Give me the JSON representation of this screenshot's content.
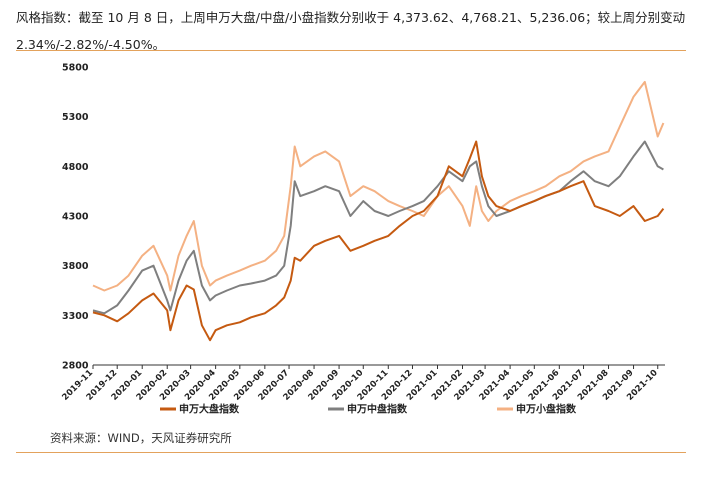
{
  "header": {
    "line1": "风格指数：截至 10 月 8 日，上周申万大盘/中盘/小盘指数分别收于 4,373.62、4,768.21、5,236.06；较上周分别变动",
    "line2": "2.34%/-2.82%/-4.50%。"
  },
  "source": "资料来源：WIND，天风证券研究所",
  "chart_data": {
    "type": "line",
    "ylim": [
      2800,
      5800
    ],
    "yticks": [
      2800,
      3300,
      3800,
      4300,
      4800,
      5300,
      5800
    ],
    "xlim": [
      "2019-11",
      "2021-10"
    ],
    "xticks": [
      "2019-11",
      "2019-12",
      "2020-01",
      "2020-02",
      "2020-03",
      "2020-04",
      "2020-05",
      "2020-06",
      "2020-07",
      "2020-08",
      "2020-09",
      "2020-10",
      "2020-11",
      "2020-12",
      "2021-01",
      "2021-02",
      "2021-03",
      "2021-04",
      "2021-05",
      "2021-06",
      "2021-07",
      "2021-08",
      "2021-09",
      "2021-10"
    ],
    "legend_position": "bottom",
    "series": [
      {
        "name": "申万大盘指数",
        "color": "#c55a11",
        "points": [
          [
            "2019-11-01",
            3330
          ],
          [
            "2019-11-15",
            3300
          ],
          [
            "2019-12-01",
            3240
          ],
          [
            "2019-12-15",
            3320
          ],
          [
            "2020-01-01",
            3450
          ],
          [
            "2020-01-15",
            3520
          ],
          [
            "2020-02-01",
            3350
          ],
          [
            "2020-02-05",
            3150
          ],
          [
            "2020-02-15",
            3450
          ],
          [
            "2020-02-25",
            3600
          ],
          [
            "2020-03-05",
            3560
          ],
          [
            "2020-03-15",
            3200
          ],
          [
            "2020-03-25",
            3050
          ],
          [
            "2020-04-01",
            3150
          ],
          [
            "2020-04-15",
            3200
          ],
          [
            "2020-05-01",
            3230
          ],
          [
            "2020-05-15",
            3280
          ],
          [
            "2020-06-01",
            3320
          ],
          [
            "2020-06-15",
            3400
          ],
          [
            "2020-06-25",
            3480
          ],
          [
            "2020-07-03",
            3650
          ],
          [
            "2020-07-08",
            3880
          ],
          [
            "2020-07-15",
            3850
          ],
          [
            "2020-08-01",
            4000
          ],
          [
            "2020-08-15",
            4050
          ],
          [
            "2020-09-01",
            4100
          ],
          [
            "2020-09-15",
            3950
          ],
          [
            "2020-10-01",
            4000
          ],
          [
            "2020-10-15",
            4050
          ],
          [
            "2020-11-01",
            4100
          ],
          [
            "2020-11-15",
            4200
          ],
          [
            "2020-12-01",
            4300
          ],
          [
            "2020-12-15",
            4350
          ],
          [
            "2021-01-01",
            4500
          ],
          [
            "2021-01-15",
            4800
          ],
          [
            "2021-02-01",
            4700
          ],
          [
            "2021-02-10",
            4880
          ],
          [
            "2021-02-18",
            5050
          ],
          [
            "2021-02-25",
            4700
          ],
          [
            "2021-03-05",
            4500
          ],
          [
            "2021-03-15",
            4400
          ],
          [
            "2021-04-01",
            4350
          ],
          [
            "2021-04-15",
            4400
          ],
          [
            "2021-05-01",
            4450
          ],
          [
            "2021-05-15",
            4500
          ],
          [
            "2021-06-01",
            4550
          ],
          [
            "2021-06-15",
            4600
          ],
          [
            "2021-07-01",
            4650
          ],
          [
            "2021-07-15",
            4400
          ],
          [
            "2021-08-01",
            4350
          ],
          [
            "2021-08-15",
            4300
          ],
          [
            "2021-09-01",
            4400
          ],
          [
            "2021-09-15",
            4250
          ],
          [
            "2021-10-01",
            4300
          ],
          [
            "2021-10-08",
            4374
          ]
        ]
      },
      {
        "name": "申万中盘指数",
        "color": "#7f7f7f",
        "points": [
          [
            "2019-11-01",
            3350
          ],
          [
            "2019-11-15",
            3320
          ],
          [
            "2019-12-01",
            3400
          ],
          [
            "2019-12-15",
            3550
          ],
          [
            "2020-01-01",
            3750
          ],
          [
            "2020-01-15",
            3800
          ],
          [
            "2020-02-01",
            3450
          ],
          [
            "2020-02-05",
            3350
          ],
          [
            "2020-02-15",
            3650
          ],
          [
            "2020-02-25",
            3850
          ],
          [
            "2020-03-05",
            3950
          ],
          [
            "2020-03-15",
            3600
          ],
          [
            "2020-03-25",
            3450
          ],
          [
            "2020-04-01",
            3500
          ],
          [
            "2020-04-15",
            3550
          ],
          [
            "2020-05-01",
            3600
          ],
          [
            "2020-05-15",
            3620
          ],
          [
            "2020-06-01",
            3650
          ],
          [
            "2020-06-15",
            3700
          ],
          [
            "2020-06-25",
            3800
          ],
          [
            "2020-07-03",
            4200
          ],
          [
            "2020-07-08",
            4650
          ],
          [
            "2020-07-15",
            4500
          ],
          [
            "2020-08-01",
            4550
          ],
          [
            "2020-08-15",
            4600
          ],
          [
            "2020-09-01",
            4550
          ],
          [
            "2020-09-15",
            4300
          ],
          [
            "2020-10-01",
            4450
          ],
          [
            "2020-10-15",
            4350
          ],
          [
            "2020-11-01",
            4300
          ],
          [
            "2020-11-15",
            4350
          ],
          [
            "2020-12-01",
            4400
          ],
          [
            "2020-12-15",
            4450
          ],
          [
            "2021-01-01",
            4600
          ],
          [
            "2021-01-15",
            4750
          ],
          [
            "2021-02-01",
            4650
          ],
          [
            "2021-02-10",
            4800
          ],
          [
            "2021-02-18",
            4850
          ],
          [
            "2021-02-25",
            4600
          ],
          [
            "2021-03-05",
            4400
          ],
          [
            "2021-03-15",
            4300
          ],
          [
            "2021-04-01",
            4350
          ],
          [
            "2021-04-15",
            4400
          ],
          [
            "2021-05-01",
            4450
          ],
          [
            "2021-05-15",
            4500
          ],
          [
            "2021-06-01",
            4550
          ],
          [
            "2021-06-15",
            4650
          ],
          [
            "2021-07-01",
            4750
          ],
          [
            "2021-07-15",
            4650
          ],
          [
            "2021-08-01",
            4600
          ],
          [
            "2021-08-15",
            4700
          ],
          [
            "2021-09-01",
            4900
          ],
          [
            "2021-09-15",
            5050
          ],
          [
            "2021-10-01",
            4800
          ],
          [
            "2021-10-08",
            4768
          ]
        ]
      },
      {
        "name": "申万小盘指数",
        "color": "#f4b183",
        "points": [
          [
            "2019-11-01",
            3600
          ],
          [
            "2019-11-15",
            3550
          ],
          [
            "2019-12-01",
            3600
          ],
          [
            "2019-12-15",
            3700
          ],
          [
            "2020-01-01",
            3900
          ],
          [
            "2020-01-15",
            4000
          ],
          [
            "2020-02-01",
            3700
          ],
          [
            "2020-02-05",
            3550
          ],
          [
            "2020-02-15",
            3900
          ],
          [
            "2020-02-25",
            4100
          ],
          [
            "2020-03-05",
            4250
          ],
          [
            "2020-03-15",
            3800
          ],
          [
            "2020-03-25",
            3600
          ],
          [
            "2020-04-01",
            3650
          ],
          [
            "2020-04-15",
            3700
          ],
          [
            "2020-05-01",
            3750
          ],
          [
            "2020-05-15",
            3800
          ],
          [
            "2020-06-01",
            3850
          ],
          [
            "2020-06-15",
            3950
          ],
          [
            "2020-06-25",
            4100
          ],
          [
            "2020-07-03",
            4600
          ],
          [
            "2020-07-08",
            5000
          ],
          [
            "2020-07-15",
            4800
          ],
          [
            "2020-08-01",
            4900
          ],
          [
            "2020-08-15",
            4950
          ],
          [
            "2020-09-01",
            4850
          ],
          [
            "2020-09-15",
            4500
          ],
          [
            "2020-10-01",
            4600
          ],
          [
            "2020-10-15",
            4550
          ],
          [
            "2020-11-01",
            4450
          ],
          [
            "2020-11-15",
            4400
          ],
          [
            "2020-12-01",
            4350
          ],
          [
            "2020-12-15",
            4300
          ],
          [
            "2021-01-01",
            4500
          ],
          [
            "2021-01-15",
            4600
          ],
          [
            "2021-02-01",
            4400
          ],
          [
            "2021-02-10",
            4200
          ],
          [
            "2021-02-18",
            4600
          ],
          [
            "2021-02-25",
            4350
          ],
          [
            "2021-03-05",
            4250
          ],
          [
            "2021-03-15",
            4350
          ],
          [
            "2021-04-01",
            4450
          ],
          [
            "2021-04-15",
            4500
          ],
          [
            "2021-05-01",
            4550
          ],
          [
            "2021-05-15",
            4600
          ],
          [
            "2021-06-01",
            4700
          ],
          [
            "2021-06-15",
            4750
          ],
          [
            "2021-07-01",
            4850
          ],
          [
            "2021-07-15",
            4900
          ],
          [
            "2021-08-01",
            4950
          ],
          [
            "2021-08-15",
            5200
          ],
          [
            "2021-09-01",
            5500
          ],
          [
            "2021-09-15",
            5650
          ],
          [
            "2021-10-01",
            5100
          ],
          [
            "2021-10-08",
            5236
          ]
        ]
      }
    ]
  }
}
